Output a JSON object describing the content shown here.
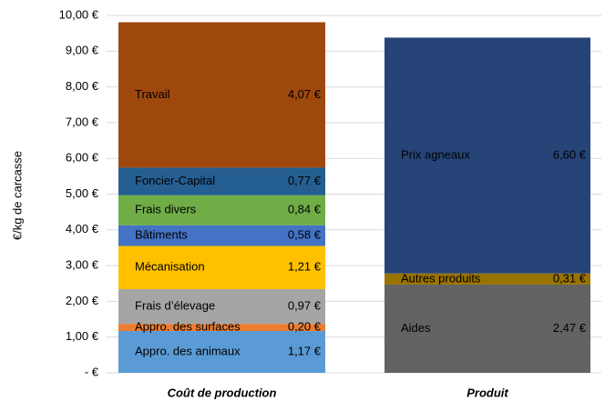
{
  "chart_data": {
    "type": "stacked_bar",
    "y_label": "€/kg de carcasse",
    "categories": [
      "Coût de production",
      "Produit"
    ],
    "ylim": [
      0,
      10
    ],
    "yticks": [
      {
        "value": 0,
        "label": "-   €"
      },
      {
        "value": 1,
        "label": "1,00 €"
      },
      {
        "value": 2,
        "label": "2,00 €"
      },
      {
        "value": 3,
        "label": "3,00 €"
      },
      {
        "value": 4,
        "label": "4,00 €"
      },
      {
        "value": 5,
        "label": "5,00 €"
      },
      {
        "value": 6,
        "label": "6,00 €"
      },
      {
        "value": 7,
        "label": "7,00 €"
      },
      {
        "value": 8,
        "label": "8,00 €"
      },
      {
        "value": 9,
        "label": "9,00 €"
      },
      {
        "value": 10,
        "label": "10,00 €"
      }
    ],
    "grid": true,
    "series": [
      {
        "name": "Appro. des animaux",
        "color": "#5b9bd5",
        "label_color": "#ffffff",
        "values": [
          1.17,
          null
        ],
        "value_labels": [
          "1,17 €",
          null
        ]
      },
      {
        "name": "Appro. des surfaces",
        "color": "#ed7d31",
        "label_color": "#ffffff",
        "values": [
          0.2,
          null
        ],
        "value_labels": [
          "0,20 €",
          null
        ]
      },
      {
        "name": "Frais d’élevage",
        "color": "#a5a5a5",
        "label_color": "#ffffff",
        "values": [
          0.97,
          null
        ],
        "value_labels": [
          "0,97 €",
          null
        ]
      },
      {
        "name": "Mécanisation",
        "color": "#ffc000",
        "label_color": "#000000",
        "values": [
          1.21,
          null
        ],
        "value_labels": [
          "1,21 €",
          null
        ]
      },
      {
        "name": "Bâtiments",
        "color": "#4472c4",
        "label_color": "#ffffff",
        "values": [
          0.58,
          null
        ],
        "value_labels": [
          "0,58 €",
          null
        ]
      },
      {
        "name": "Frais divers",
        "color": "#70ad47",
        "label_color": "#ffffff",
        "values": [
          0.84,
          null
        ],
        "value_labels": [
          "0,84 €",
          null
        ]
      },
      {
        "name": "Foncier-Capital",
        "color": "#255e91",
        "label_color": "#ffffff",
        "values": [
          0.77,
          null
        ],
        "value_labels": [
          "0,77 €",
          null
        ]
      },
      {
        "name": "Travail",
        "color": "#9e480e",
        "label_color": "#ffffff",
        "values": [
          4.07,
          null
        ],
        "value_labels": [
          "4,07 €",
          null
        ]
      },
      {
        "name": "Aides",
        "color": "#636363",
        "label_color": "#ffffff",
        "values": [
          null,
          2.47
        ],
        "value_labels": [
          null,
          "2,47 €"
        ]
      },
      {
        "name": "Autres produits",
        "color": "#997300",
        "label_color": "#ffffff",
        "values": [
          null,
          0.31
        ],
        "value_labels": [
          null,
          "0,31 €"
        ]
      },
      {
        "name": "Prix agneaux",
        "color": "#264478",
        "label_color": "#ffffff",
        "values": [
          null,
          6.6
        ],
        "value_labels": [
          null,
          "6,60 €"
        ]
      }
    ]
  }
}
